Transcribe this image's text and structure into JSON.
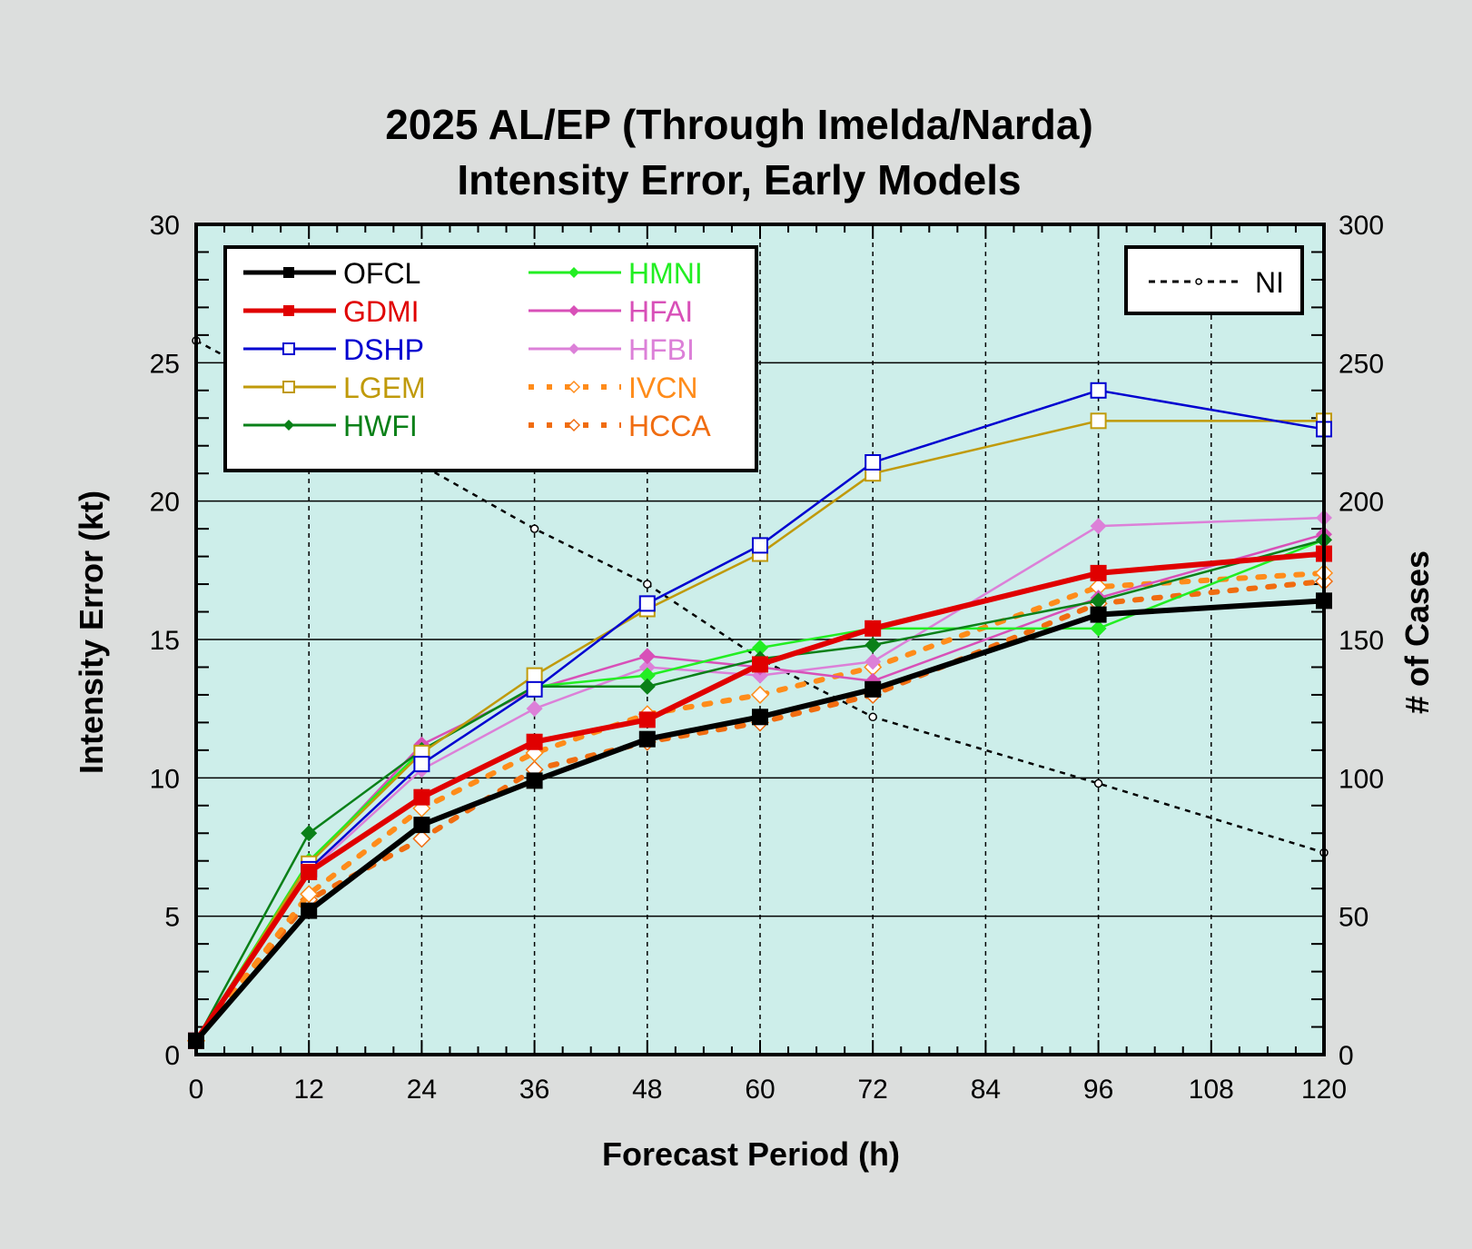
{
  "chart_data": {
    "type": "line",
    "title": [
      "2025 AL/EP (Through Imelda/Narda)",
      "Intensity Error, Early Models"
    ],
    "xlabel": "Forecast Period (h)",
    "ylabel": "Intensity Error (kt)",
    "y2label": "# of Cases",
    "xlim": [
      0,
      120
    ],
    "ylim": [
      0,
      30
    ],
    "y2lim": [
      0,
      300
    ],
    "xticks": [
      "0",
      "12",
      "24",
      "36",
      "48",
      "60",
      "72",
      "84",
      "96",
      "108",
      "120"
    ],
    "yticks": [
      "0",
      "5",
      "10",
      "15",
      "20",
      "25",
      "30"
    ],
    "y2ticks": [
      "0",
      "50",
      "100",
      "150",
      "200",
      "250",
      "300"
    ],
    "grid": true,
    "legend_placement": "top-left",
    "legend2_placement": "top-right",
    "x": [
      0,
      12,
      24,
      36,
      48,
      60,
      72,
      96,
      120
    ],
    "series": [
      {
        "name": "OFCL",
        "color": "#000000",
        "width": 6,
        "marker": "square-filled",
        "dash": "",
        "values": [
          0.5,
          5.2,
          8.3,
          9.9,
          11.4,
          12.2,
          13.2,
          15.9,
          16.4
        ]
      },
      {
        "name": "GDMI",
        "color": "#e00000",
        "width": 6,
        "marker": "square-filled",
        "dash": "",
        "values": [
          0.5,
          6.6,
          9.3,
          11.3,
          12.1,
          14.1,
          15.4,
          17.4,
          18.1
        ]
      },
      {
        "name": "DSHP",
        "color": "#0000d0",
        "width": 2.5,
        "marker": "square-open",
        "dash": "",
        "values": [
          0.5,
          6.7,
          10.5,
          13.2,
          16.3,
          18.4,
          21.4,
          24.0,
          22.6
        ]
      },
      {
        "name": "LGEM",
        "color": "#c09a0a",
        "width": 2.5,
        "marker": "square-open",
        "dash": "",
        "values": [
          0.5,
          6.9,
          10.9,
          13.7,
          16.1,
          18.1,
          21.0,
          22.9,
          22.9
        ]
      },
      {
        "name": "HWFI",
        "color": "#0a8018",
        "width": 2.5,
        "marker": "diamond-filled",
        "dash": "",
        "values": [
          0.5,
          8.0,
          11.0,
          13.3,
          13.3,
          14.3,
          14.8,
          16.4,
          18.6
        ]
      },
      {
        "name": "HMNI",
        "color": "#22ee22",
        "width": 2.5,
        "marker": "diamond-filled",
        "dash": "",
        "values": [
          0.5,
          7.0,
          11.0,
          13.3,
          13.7,
          14.7,
          15.4,
          15.4,
          18.6
        ]
      },
      {
        "name": "HFAI",
        "color": "#d850b8",
        "width": 2.5,
        "marker": "diamond-filled",
        "dash": "",
        "values": [
          0.5,
          6.9,
          11.2,
          13.2,
          14.4,
          14.0,
          13.5,
          16.5,
          18.8
        ]
      },
      {
        "name": "HFBI",
        "color": "#dc80d8",
        "width": 2.5,
        "marker": "diamond-filled",
        "dash": "",
        "values": [
          0.5,
          6.6,
          10.3,
          12.5,
          14.0,
          13.7,
          14.2,
          19.1,
          19.4
        ]
      },
      {
        "name": "IVCN",
        "color": "#ff8c1a",
        "width": 6,
        "marker": "diamond-open",
        "dash": "7 14",
        "values": [
          0.5,
          5.8,
          8.9,
          10.9,
          12.3,
          13.0,
          14.0,
          16.9,
          17.4
        ]
      },
      {
        "name": "HCCA",
        "color": "#f06c10",
        "width": 6,
        "marker": "diamond-open",
        "dash": "7 14",
        "values": [
          0.5,
          5.6,
          7.8,
          10.3,
          11.3,
          12.0,
          13.0,
          16.3,
          17.1
        ]
      }
    ],
    "cases_series": {
      "name": "NI",
      "color": "#000000",
      "axis": "right",
      "marker": "circle-open",
      "dash": "6 6",
      "values": [
        258,
        236,
        213,
        190,
        170,
        143,
        122,
        98,
        73
      ]
    }
  }
}
